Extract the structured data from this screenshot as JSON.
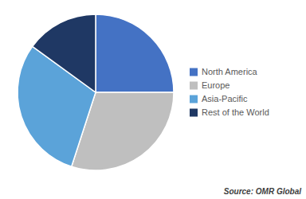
{
  "chart_data": {
    "type": "pie",
    "categories": [
      "North America",
      "Europe",
      "Asia-Pacific",
      "Rest of the World"
    ],
    "values": [
      25,
      30,
      30,
      15
    ],
    "colors": [
      "#4472C4",
      "#BFBFBF",
      "#5BA3D9",
      "#1F3864"
    ],
    "legend": "right",
    "source": "Source: OMR Global"
  }
}
